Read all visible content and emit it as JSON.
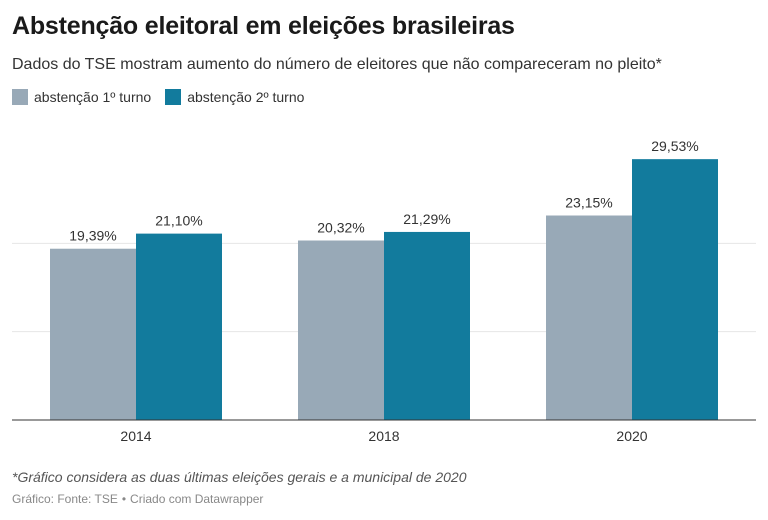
{
  "header": {
    "title": "Abstenção eleitoral em eleições brasileiras",
    "subtitle": "Dados do TSE mostram aumento do número de eleitores que não compareceram no pleito*"
  },
  "footer": {
    "note": "*Gráfico considera as duas últimas eleições gerais e a municipal de 2020",
    "source_prefix": "Gráfico: Fonte: TSE",
    "separator": "•",
    "credit": "Criado com Datawrapper"
  },
  "chart_data": {
    "type": "bar",
    "title": "Abstenção eleitoral em eleições brasileiras",
    "subtitle": "Dados do TSE mostram aumento do número de eleitores que não compareceram no pleito*",
    "categories": [
      "2014",
      "2018",
      "2020"
    ],
    "series": [
      {
        "name": "abstenção 1º turno",
        "color": "#98a9b7",
        "values": [
          19.39,
          20.32,
          23.15
        ],
        "labels": [
          "19,39%",
          "20,32%",
          "23,15%"
        ]
      },
      {
        "name": "abstenção 2º turno",
        "color": "#127b9d",
        "values": [
          21.1,
          21.29,
          29.53
        ],
        "labels": [
          "21,10%",
          "21,29%",
          "29,53%"
        ]
      }
    ],
    "xlabel": "",
    "ylabel": "",
    "ylim": [
      0,
      30
    ],
    "grid": true,
    "legend_position": "top-left"
  }
}
